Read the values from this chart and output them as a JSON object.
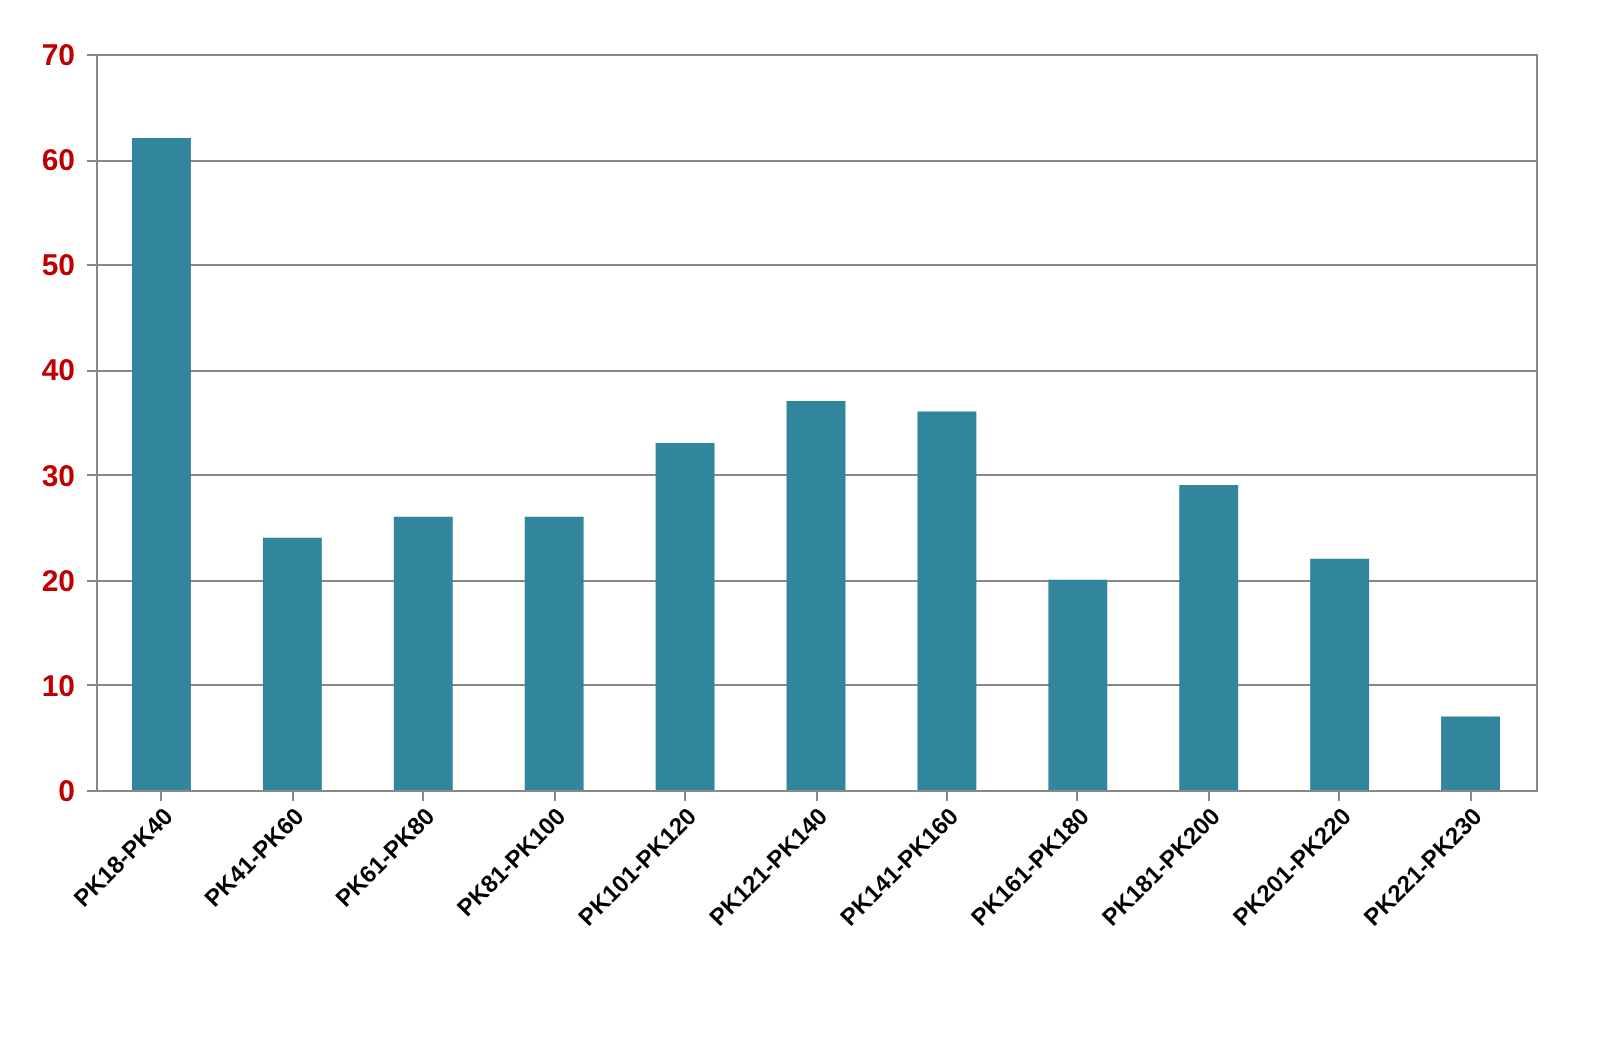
{
  "chart_data": {
    "type": "bar",
    "categories": [
      "PK18-PK40",
      "PK41-PK60",
      "PK61-PK80",
      "PK81-PK100",
      "PK101-PK120",
      "PK121-PK140",
      "PK141-PK160",
      "PK161-PK180",
      "PK181-PK200",
      "PK201-PK220",
      "PK221-PK230"
    ],
    "values": [
      62,
      24,
      26,
      26,
      33,
      37,
      36,
      20,
      29,
      22,
      7
    ],
    "color": "#31859c",
    "ylim": [
      0,
      70
    ],
    "yticks": [
      0,
      10,
      20,
      30,
      40,
      50,
      60,
      70
    ],
    "grid": "y"
  }
}
